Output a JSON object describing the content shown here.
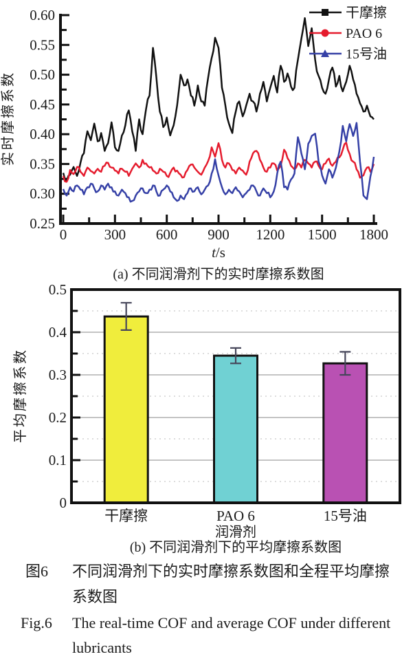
{
  "page": {
    "background": "#ffffff",
    "text_color": "#1a1a1a"
  },
  "figure": {
    "caption_a": "(a) 不同润滑剂下的实时摩擦系数图",
    "caption_b": "(b) 不同润滑剂下的平均摩擦系数图",
    "caption_cn_label": "图6",
    "caption_cn_line1": "不同润滑剂下的实时摩擦系数图和全程平均摩擦",
    "caption_cn_line2": "系数图",
    "caption_en_label": "Fig.6",
    "caption_en_line1": "The real-time COF and average COF under different",
    "caption_en_line2": "lubricants"
  },
  "chart_data": [
    {
      "type": "line",
      "title": "",
      "xlabel": "t/s",
      "ylabel": "实时摩擦系数",
      "xlim": [
        0,
        1800
      ],
      "ylim": [
        0.25,
        0.6
      ],
      "xticks": [
        0,
        300,
        600,
        900,
        1200,
        1500,
        1800
      ],
      "x_minor_step": 150,
      "yticks": [
        "0.25",
        "0.30",
        "0.35",
        "0.40",
        "0.45",
        "0.50",
        "0.55",
        "0.60"
      ],
      "y_minor_step": 0.025,
      "grid": false,
      "legend_position": "top-right",
      "sample_step_s": 20,
      "axis_color": "#111111",
      "series": [
        {
          "name": "干摩擦",
          "color": "#111111",
          "marker": "square",
          "jitter": 0.006,
          "values": [
            0.335,
            0.322,
            0.332,
            0.345,
            0.33,
            0.352,
            0.368,
            0.405,
            0.39,
            0.418,
            0.388,
            0.402,
            0.372,
            0.385,
            0.42,
            0.378,
            0.372,
            0.398,
            0.415,
            0.44,
            0.405,
            0.372,
            0.425,
            0.4,
            0.442,
            0.465,
            0.545,
            0.495,
            0.438,
            0.412,
            0.428,
            0.398,
            0.415,
            0.448,
            0.5,
            0.482,
            0.492,
            0.465,
            0.448,
            0.482,
            0.455,
            0.448,
            0.495,
            0.528,
            0.562,
            0.545,
            0.478,
            0.448,
            0.418,
            0.402,
            0.438,
            0.455,
            0.43,
            0.448,
            0.468,
            0.455,
            0.438,
            0.468,
            0.488,
            0.455,
            0.478,
            0.498,
            0.47,
            0.515,
            0.488,
            0.502,
            0.48,
            0.478,
            0.525,
            0.56,
            0.595,
            0.548,
            0.578,
            0.525,
            0.498,
            0.478,
            0.468,
            0.492,
            0.512,
            0.48,
            0.498,
            0.472,
            0.488,
            0.515,
            0.492,
            0.468,
            0.452,
            0.438,
            0.448,
            0.43,
            0.425
          ]
        },
        {
          "name": "PAO 6",
          "color": "#e51b2d",
          "marker": "circle",
          "jitter": 0.0045,
          "values": [
            0.33,
            0.32,
            0.34,
            0.333,
            0.345,
            0.337,
            0.33,
            0.344,
            0.338,
            0.334,
            0.342,
            0.337,
            0.347,
            0.352,
            0.344,
            0.339,
            0.334,
            0.342,
            0.337,
            0.33,
            0.342,
            0.351,
            0.344,
            0.357,
            0.351,
            0.344,
            0.339,
            0.334,
            0.342,
            0.337,
            0.33,
            0.335,
            0.344,
            0.339,
            0.332,
            0.328,
            0.34,
            0.349,
            0.344,
            0.337,
            0.332,
            0.344,
            0.355,
            0.378,
            0.362,
            0.385,
            0.357,
            0.344,
            0.351,
            0.34,
            0.334,
            0.344,
            0.339,
            0.332,
            0.354,
            0.368,
            0.372,
            0.357,
            0.344,
            0.337,
            0.344,
            0.351,
            0.339,
            0.347,
            0.374,
            0.36,
            0.347,
            0.341,
            0.351,
            0.344,
            0.357,
            0.351,
            0.344,
            0.354,
            0.347,
            0.341,
            0.351,
            0.359,
            0.347,
            0.354,
            0.361,
            0.374,
            0.386,
            0.367,
            0.354,
            0.341,
            0.327,
            0.331,
            0.344,
            0.337,
            0.35
          ]
        },
        {
          "name": "15号油",
          "color": "#3540a6",
          "marker": "triangle",
          "jitter": 0.0045,
          "values": [
            0.308,
            0.297,
            0.311,
            0.304,
            0.314,
            0.307,
            0.299,
            0.311,
            0.317,
            0.309,
            0.304,
            0.314,
            0.307,
            0.317,
            0.311,
            0.304,
            0.297,
            0.307,
            0.301,
            0.294,
            0.288,
            0.297,
            0.304,
            0.309,
            0.301,
            0.307,
            0.314,
            0.304,
            0.297,
            0.307,
            0.314,
            0.304,
            0.294,
            0.288,
            0.297,
            0.291,
            0.301,
            0.309,
            0.304,
            0.311,
            0.299,
            0.307,
            0.314,
            0.334,
            0.358,
            0.331,
            0.311,
            0.299,
            0.307,
            0.301,
            0.311,
            0.304,
            0.294,
            0.301,
            0.307,
            0.314,
            0.304,
            0.297,
            0.309,
            0.301,
            0.294,
            0.304,
            0.334,
            0.354,
            0.311,
            0.307,
            0.324,
            0.334,
            0.395,
            0.368,
            0.341,
            0.384,
            0.397,
            0.401,
            0.354,
            0.331,
            0.317,
            0.341,
            0.327,
            0.344,
            0.371,
            0.414,
            0.388,
            0.417,
            0.397,
            0.419,
            0.354,
            0.297,
            0.291,
            0.329,
            0.362
          ]
        }
      ]
    },
    {
      "type": "bar",
      "title": "",
      "xlabel": "润滑剂",
      "ylabel": "平均摩擦系数",
      "categories": [
        "干摩擦",
        "PAO 6",
        "15号油"
      ],
      "values": [
        0.437,
        0.345,
        0.327
      ],
      "errors": [
        0.032,
        0.018,
        0.027
      ],
      "bar_colors": [
        "#f0ed3c",
        "#70d1d3",
        "#b951b3"
      ],
      "bar_edge_color": "#111111",
      "error_bar_color": "#46465a",
      "ylim": [
        0,
        0.5
      ],
      "yticks": [
        "0",
        "0.1",
        "0.2",
        "0.3",
        "0.4",
        "0.5"
      ],
      "y_minor_step": 0.05,
      "grid": "horizontal",
      "grid_major_color": "#b0b0b0",
      "grid_minor_color": "#d2d2d2",
      "axis_color": "#111111"
    }
  ]
}
